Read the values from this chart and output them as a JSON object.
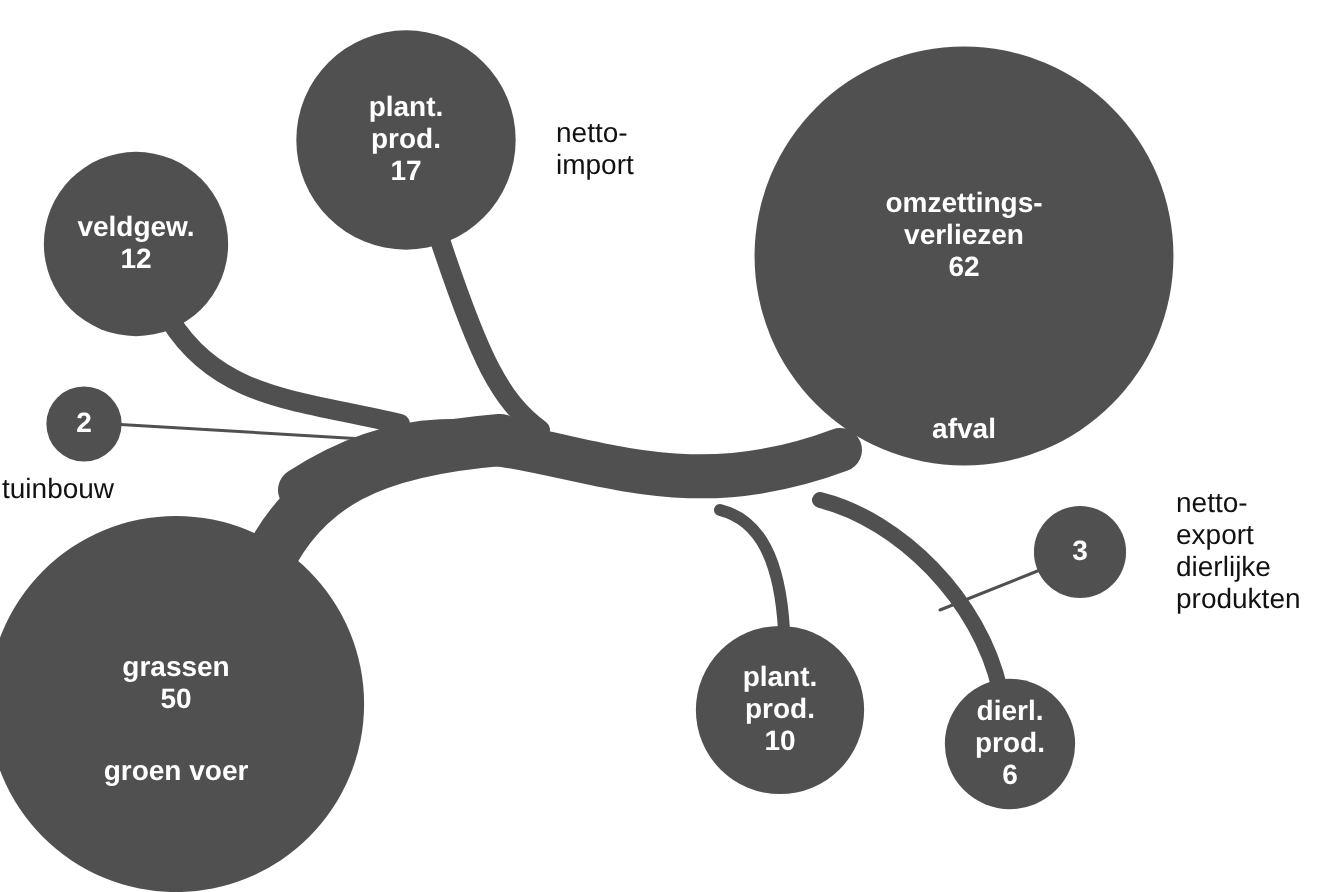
{
  "chart_data": {
    "type": "other",
    "categories": [
      "veldgew.",
      "plant. prod.",
      "omzettings-verliezen",
      "tuinbouw",
      "grassen",
      "plant. prod.",
      "dierl. prod.",
      "netto-export dierlijke produkten"
    ],
    "data_labels": true,
    "values": [
      12,
      17,
      62,
      2,
      50,
      10,
      6,
      3
    ],
    "color": "#505050",
    "annotations": [
      "netto-import",
      "afval",
      "groen voer"
    ]
  }
}
